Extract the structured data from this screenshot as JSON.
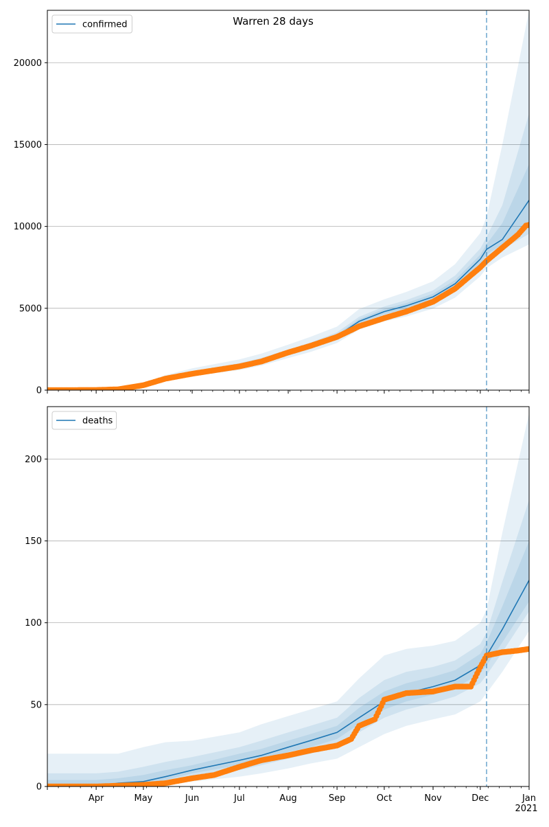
{
  "chart_data": [
    {
      "type": "line",
      "title": "Warren 28 days",
      "xlabel": "",
      "ylabel": "",
      "ylim": [
        0,
        23200
      ],
      "yticks": [
        0,
        5000,
        10000,
        15000,
        20000
      ],
      "xlim": [
        "2020-03-01",
        "2021-01-01"
      ],
      "grid": "horizontal",
      "legend_position": "top-left",
      "forecast_start": "2020-12-05",
      "colors": {
        "model": "#1f77b4",
        "observed": "#ff7f0e",
        "band": "#1f77b4"
      },
      "series": [
        {
          "name": "confirmed",
          "kind": "model-line",
          "x": [
            "2020-03-01",
            "2020-04-01",
            "2020-04-15",
            "2020-05-01",
            "2020-05-15",
            "2020-06-01",
            "2020-07-01",
            "2020-07-15",
            "2020-08-01",
            "2020-08-15",
            "2020-09-01",
            "2020-09-15",
            "2020-10-01",
            "2020-10-15",
            "2020-11-01",
            "2020-11-15",
            "2020-12-01",
            "2020-12-05",
            "2020-12-15",
            "2021-01-01"
          ],
          "y": [
            0,
            20,
            70,
            300,
            700,
            1050,
            1500,
            1800,
            2300,
            2700,
            3300,
            4200,
            4800,
            5150,
            5700,
            6500,
            8000,
            8600,
            9200,
            11600
          ]
        },
        {
          "name": "",
          "kind": "observed-points",
          "x": [
            "2020-03-01",
            "2020-04-01",
            "2020-04-15",
            "2020-05-01",
            "2020-05-15",
            "2020-06-01",
            "2020-07-01",
            "2020-07-15",
            "2020-08-01",
            "2020-08-15",
            "2020-09-01",
            "2020-09-15",
            "2020-10-01",
            "2020-10-15",
            "2020-11-01",
            "2020-11-15",
            "2020-12-01",
            "2020-12-05",
            "2020-12-15",
            "2020-12-25",
            "2020-12-30",
            "2021-01-01"
          ],
          "y": [
            0,
            10,
            50,
            300,
            700,
            1000,
            1450,
            1750,
            2300,
            2700,
            3250,
            3900,
            4400,
            4800,
            5400,
            6200,
            7500,
            7900,
            8700,
            9500,
            10050,
            10100
          ]
        }
      ],
      "bands": {
        "x": [
          "2020-03-01",
          "2020-04-01",
          "2020-04-15",
          "2020-05-01",
          "2020-05-15",
          "2020-06-01",
          "2020-07-01",
          "2020-07-15",
          "2020-08-01",
          "2020-08-15",
          "2020-09-01",
          "2020-09-15",
          "2020-10-01",
          "2020-10-15",
          "2020-11-01",
          "2020-11-15",
          "2020-12-01",
          "2020-12-05",
          "2020-12-15",
          "2021-01-01"
        ],
        "outer": {
          "low": [
            0,
            0,
            40,
            220,
            560,
            860,
            1230,
            1500,
            1960,
            2330,
            2880,
            3700,
            4200,
            4500,
            4980,
            5650,
            6950,
            7450,
            8100,
            8900
          ],
          "high": [
            40,
            100,
            180,
            450,
            920,
            1330,
            1880,
            2230,
            2780,
            3250,
            3880,
            4950,
            5550,
            6000,
            6650,
            7700,
            9600,
            10600,
            15000,
            23200
          ]
        },
        "middle": {
          "low": [
            0,
            5,
            52,
            258,
            625,
            950,
            1360,
            1640,
            2120,
            2510,
            3080,
            3930,
            4480,
            4800,
            5310,
            6050,
            7450,
            7950,
            8600,
            9550
          ],
          "high": [
            15,
            50,
            100,
            350,
            780,
            1160,
            1650,
            1970,
            2480,
            2900,
            3530,
            4480,
            5110,
            5500,
            6100,
            7000,
            8650,
            9350,
            11300,
            16900
          ]
        },
        "inner": {
          "low": [
            0,
            12,
            62,
            282,
            665,
            1000,
            1430,
            1725,
            2210,
            2600,
            3190,
            4070,
            4640,
            4980,
            5510,
            6280,
            7730,
            8280,
            8900,
            10300
          ],
          "high": [
            5,
            30,
            82,
            322,
            740,
            1100,
            1570,
            1875,
            2390,
            2800,
            3410,
            4330,
            4960,
            5320,
            5890,
            6720,
            8270,
            8920,
            10200,
            13800
          ]
        }
      }
    },
    {
      "type": "line",
      "title": "",
      "xlabel": "",
      "ylabel": "",
      "ylim": [
        0,
        232
      ],
      "yticks": [
        0,
        50,
        100,
        150,
        200
      ],
      "xlim": [
        "2020-03-01",
        "2021-01-01"
      ],
      "xticks": [
        {
          "date": "2020-04-01",
          "label": "Apr"
        },
        {
          "date": "2020-05-01",
          "label": "May"
        },
        {
          "date": "2020-06-01",
          "label": "Jun"
        },
        {
          "date": "2020-07-01",
          "label": "Jul"
        },
        {
          "date": "2020-08-01",
          "label": "Aug"
        },
        {
          "date": "2020-09-01",
          "label": "Sep"
        },
        {
          "date": "2020-10-01",
          "label": "Oct"
        },
        {
          "date": "2020-11-01",
          "label": "Nov"
        },
        {
          "date": "2020-12-01",
          "label": "Dec"
        },
        {
          "date": "2021-01-01",
          "label": "Jan"
        }
      ],
      "year_label": "2021",
      "grid": "horizontal",
      "legend_position": "top-left",
      "forecast_start": "2020-12-05",
      "colors": {
        "model": "#1f77b4",
        "observed": "#ff7f0e",
        "band": "#1f77b4"
      },
      "series": [
        {
          "name": "deaths",
          "kind": "model-line",
          "x": [
            "2020-03-01",
            "2020-04-01",
            "2020-04-15",
            "2020-05-01",
            "2020-05-15",
            "2020-06-01",
            "2020-07-01",
            "2020-07-15",
            "2020-08-01",
            "2020-08-15",
            "2020-09-01",
            "2020-09-15",
            "2020-10-01",
            "2020-10-15",
            "2020-11-01",
            "2020-11-15",
            "2020-12-01",
            "2020-12-05",
            "2020-12-15",
            "2021-01-01"
          ],
          "y": [
            0,
            0,
            2,
            3,
            6,
            10,
            16,
            19,
            24,
            28,
            33,
            42,
            52,
            57,
            61,
            65,
            74,
            80,
            96,
            126
          ]
        },
        {
          "name": "",
          "kind": "observed-points",
          "x": [
            "2020-03-01",
            "2020-04-01",
            "2020-05-01",
            "2020-05-15",
            "2020-06-01",
            "2020-06-15",
            "2020-07-01",
            "2020-07-15",
            "2020-08-01",
            "2020-08-15",
            "2020-09-01",
            "2020-09-10",
            "2020-09-15",
            "2020-09-25",
            "2020-10-01",
            "2020-10-15",
            "2020-11-01",
            "2020-11-15",
            "2020-11-25",
            "2020-12-01",
            "2020-12-05",
            "2020-12-15",
            "2020-12-25",
            "2021-01-01"
          ],
          "y": [
            0,
            0,
            1,
            2,
            5,
            7,
            12,
            16,
            19,
            22,
            25,
            29,
            37,
            41,
            53,
            57,
            58,
            61,
            61,
            73,
            80,
            82,
            83,
            84
          ]
        }
      ],
      "bands": {
        "x": [
          "2020-03-01",
          "2020-04-01",
          "2020-04-15",
          "2020-05-01",
          "2020-05-15",
          "2020-06-01",
          "2020-07-01",
          "2020-07-15",
          "2020-08-01",
          "2020-08-15",
          "2020-09-01",
          "2020-09-15",
          "2020-10-01",
          "2020-10-15",
          "2020-11-01",
          "2020-11-15",
          "2020-12-01",
          "2020-12-05",
          "2020-12-15",
          "2021-01-01"
        ],
        "outer": {
          "low": [
            0,
            0,
            0,
            0,
            1,
            3,
            6,
            8,
            11,
            14,
            17,
            24,
            32,
            37,
            41,
            44,
            52,
            57,
            70,
            95
          ],
          "high": [
            20,
            20,
            20,
            24,
            27,
            28,
            33,
            38,
            43,
            47,
            52,
            66,
            80,
            84,
            86,
            89,
            100,
            108,
            155,
            228
          ]
        },
        "middle": {
          "low": [
            0,
            0,
            0,
            0,
            3,
            6,
            10,
            13,
            17,
            20,
            25,
            33,
            42,
            47,
            51,
            55,
            63,
            68,
            82,
            107
          ],
          "high": [
            8,
            8,
            9,
            12,
            15,
            18,
            24,
            28,
            33,
            37,
            42,
            54,
            65,
            70,
            73,
            77,
            87,
            94,
            125,
            175
          ]
        },
        "inner": {
          "low": [
            0,
            0,
            1,
            2,
            4,
            8,
            13,
            16,
            21,
            24,
            29,
            38,
            47,
            52,
            56,
            60,
            69,
            74,
            88,
            113
          ],
          "high": [
            4,
            4,
            5,
            7,
            10,
            13,
            20,
            23,
            28,
            32,
            37,
            48,
            58,
            63,
            67,
            71,
            81,
            88,
            110,
            150
          ]
        }
      }
    }
  ]
}
